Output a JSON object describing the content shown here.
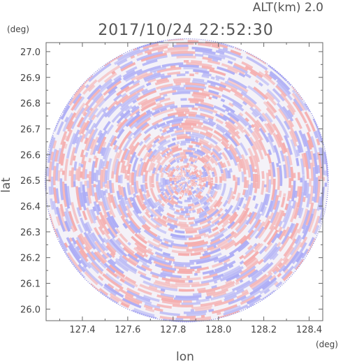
{
  "header": {
    "altitude_label": "ALT(km) 2.0",
    "timestamp": "2017/10/24 22:52:30"
  },
  "chart_data": {
    "type": "heatmap",
    "description_kind": "polar radar scan",
    "xlabel": "lon",
    "ylabel": "lat",
    "x_unit": "(deg)",
    "y_unit": "(deg)",
    "xlim": [
      127.24,
      128.46
    ],
    "ylim": [
      25.955,
      27.035
    ],
    "x_ticks": [
      127.4,
      127.6,
      127.8,
      128.0,
      128.2,
      128.4
    ],
    "y_ticks": [
      26.0,
      26.1,
      26.2,
      26.3,
      26.4,
      26.5,
      26.6,
      26.7,
      26.8,
      26.9,
      27.0
    ],
    "x_tick_labels": [
      "127.4",
      "127.6",
      "127.8",
      "128.0",
      "128.2",
      "128.4"
    ],
    "y_tick_labels": [
      "26.0",
      "26.1",
      "26.2",
      "26.3",
      "26.4",
      "26.5",
      "26.6",
      "26.7",
      "26.8",
      "26.9",
      "27.0"
    ],
    "center": {
      "lon": 127.86,
      "lat": 26.5
    },
    "radius_deg_lat": 0.55,
    "positive_color": "#f5a5a5",
    "negative_color": "#a5a5f5",
    "grid": false
  }
}
